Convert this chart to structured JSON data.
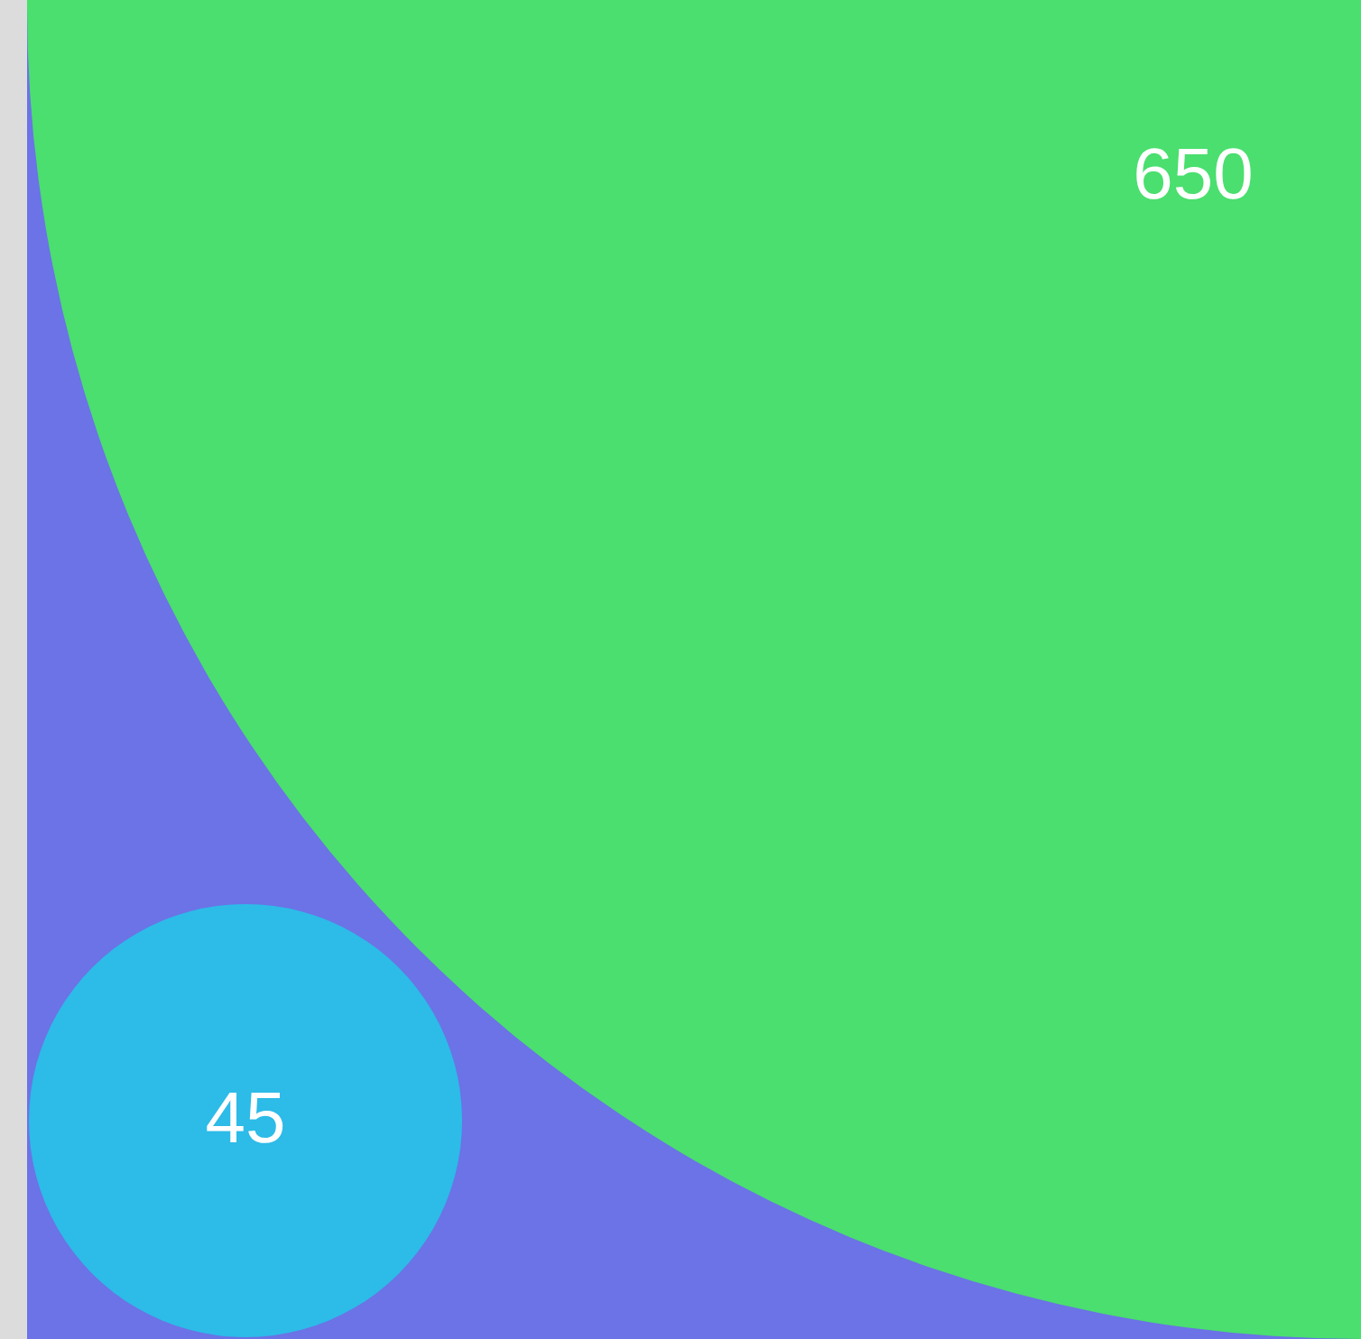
{
  "chart_data": {
    "type": "other",
    "categories": [
      null,
      null,
      null
    ],
    "values": [
      650,
      45,
      null
    ],
    "colors": [
      "#4adf6e",
      "#2dbbe8",
      "#6b73e6"
    ],
    "data_labels": true
  }
}
